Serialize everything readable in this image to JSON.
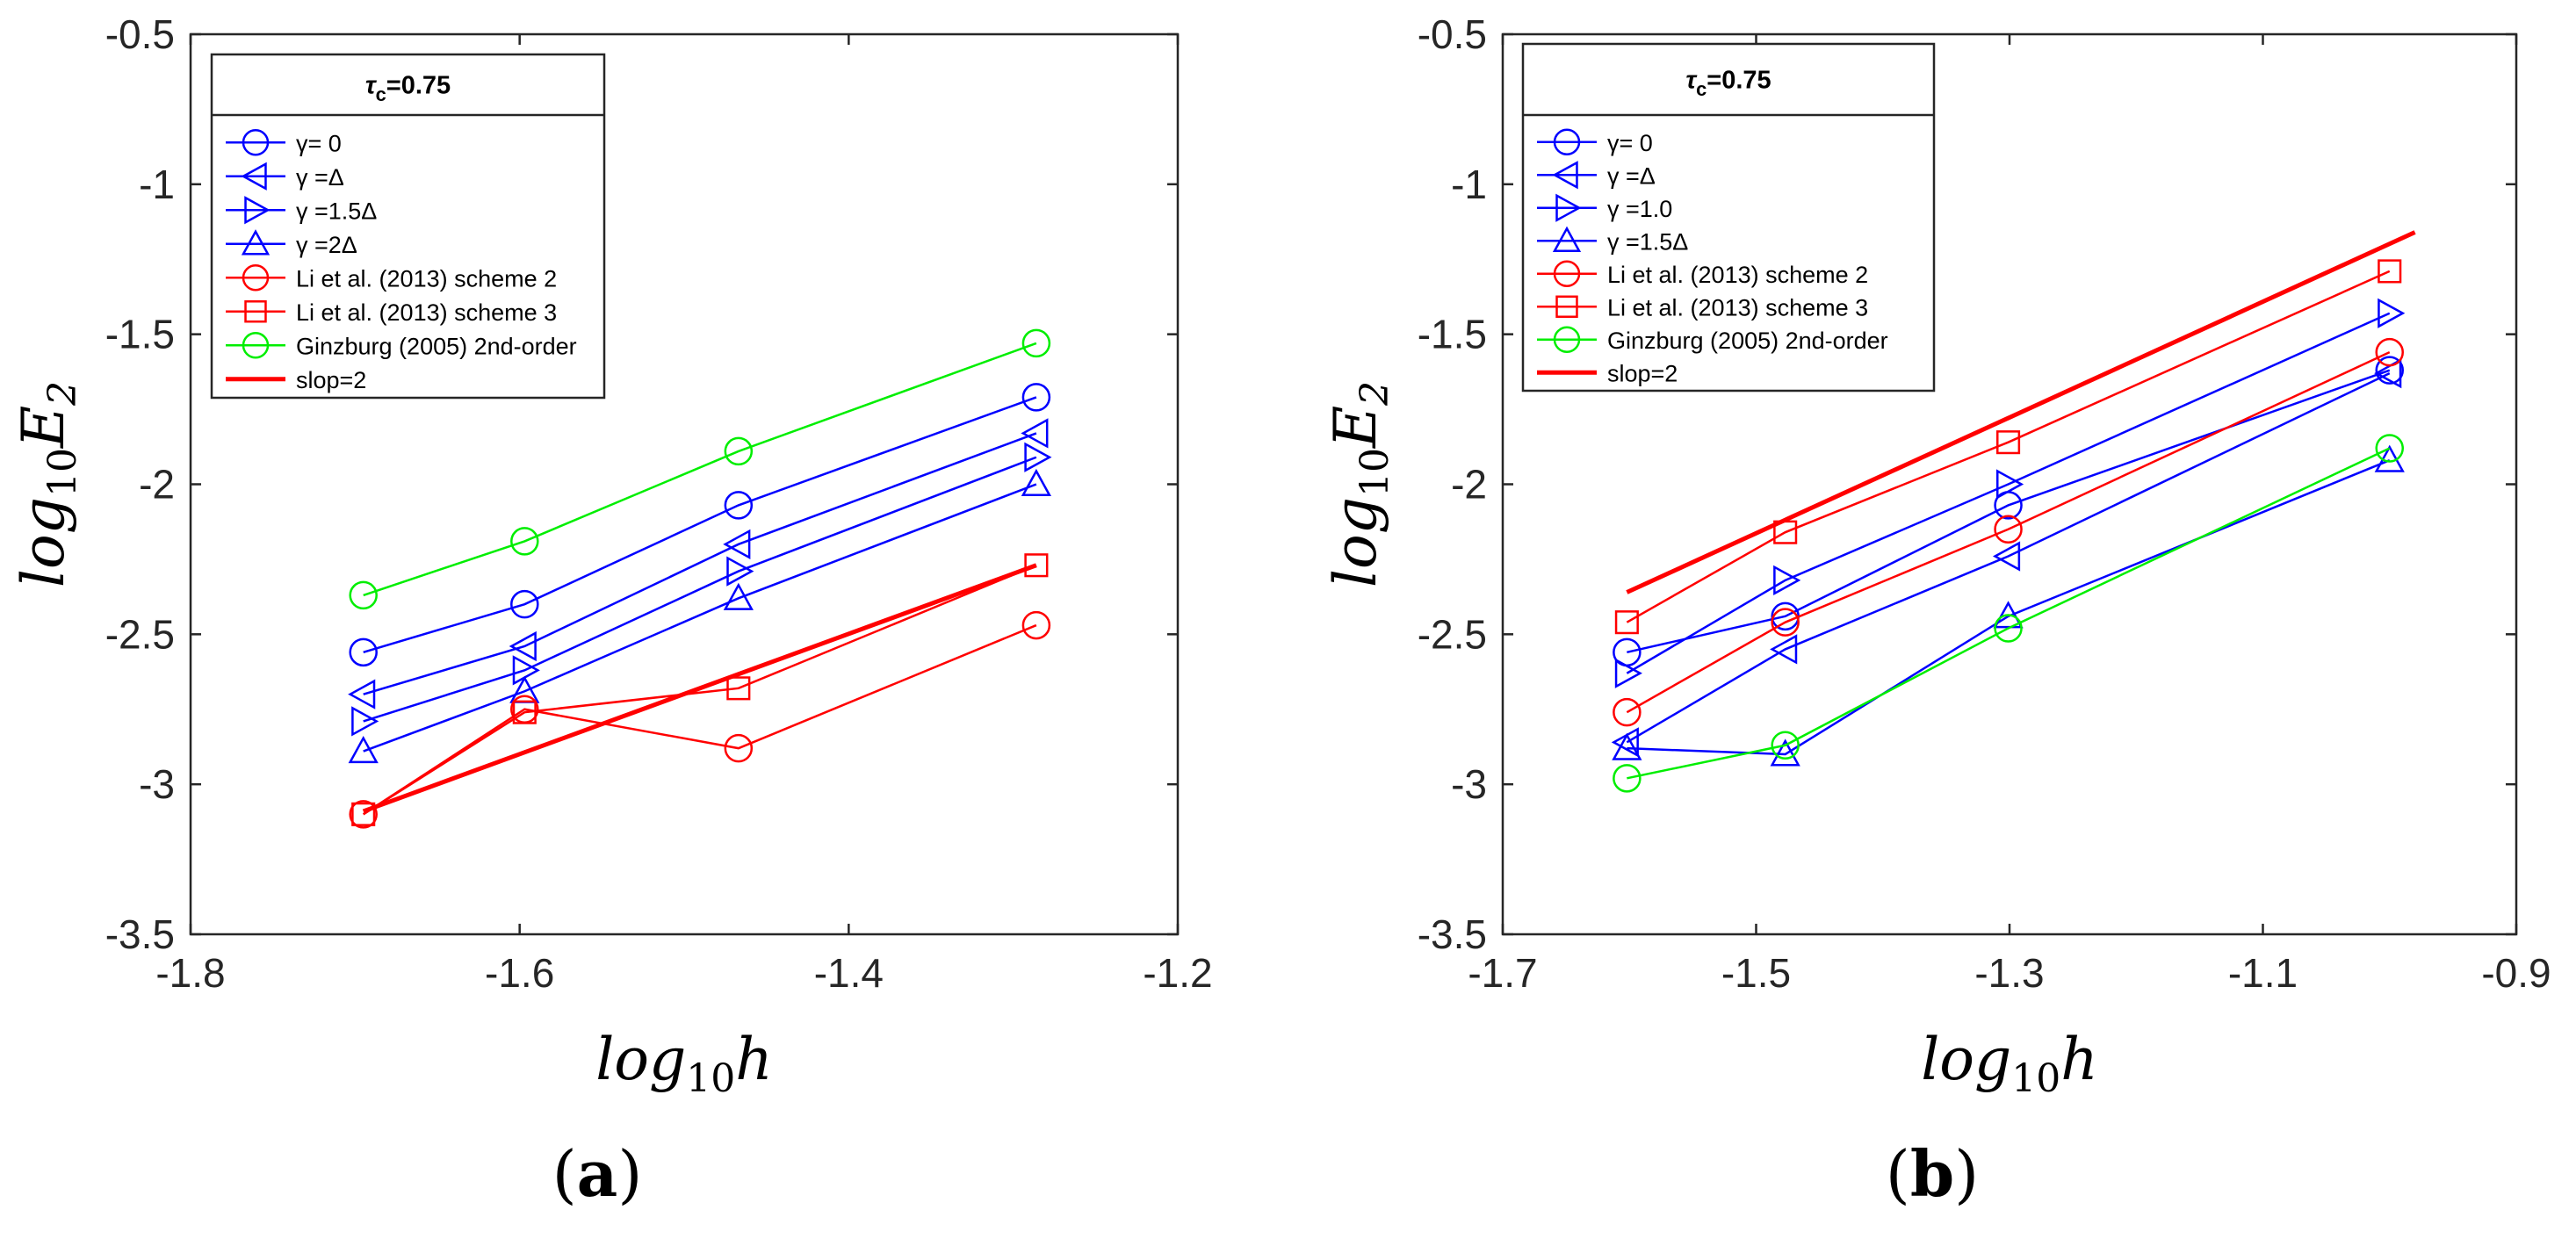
{
  "chart_data": [
    {
      "type": "line",
      "panel_label": "(a)",
      "xlabel": "log10h",
      "ylabel": "log10E2",
      "xlim": [
        -1.8,
        -1.2
      ],
      "ylim": [
        -3.5,
        -0.5
      ],
      "xticks": [
        -1.8,
        -1.6,
        -1.4,
        -1.2
      ],
      "yticks": [
        -0.5,
        -1,
        -1.5,
        -2,
        -2.5,
        -3,
        -3.5
      ],
      "xtick_labels": [
        "-1.8",
        "-1.6",
        "-1.4",
        "-1.2"
      ],
      "ytick_labels": [
        "-0.5",
        "-1",
        "-1.5",
        "-2",
        "-2.5",
        "-3",
        "-3.5"
      ],
      "grid": false,
      "legend": {
        "placement": "top-left",
        "title": "τc=0.75",
        "entries": [
          "γ= 0",
          "γ =Δ",
          "γ =1.5Δ",
          "γ =2Δ",
          "Li et al. (2013) scheme 2",
          "Li et al. (2013) scheme 3",
          "Ginzburg (2005) 2nd-order",
          "slop=2"
        ]
      },
      "series": [
        {
          "name": "γ= 0",
          "color": "#0000ff",
          "marker": "circle",
          "x": [
            -1.695,
            -1.597,
            -1.467,
            -1.286
          ],
          "y": [
            -2.56,
            -2.4,
            -2.07,
            -1.71
          ]
        },
        {
          "name": "γ =Δ",
          "color": "#0000ff",
          "marker": "triangle-left",
          "x": [
            -1.695,
            -1.597,
            -1.467,
            -1.286
          ],
          "y": [
            -2.7,
            -2.54,
            -2.2,
            -1.83
          ]
        },
        {
          "name": "γ =1.5Δ",
          "color": "#0000ff",
          "marker": "triangle-right",
          "x": [
            -1.695,
            -1.597,
            -1.467,
            -1.286
          ],
          "y": [
            -2.79,
            -2.62,
            -2.29,
            -1.91
          ]
        },
        {
          "name": "γ =2Δ",
          "color": "#0000ff",
          "marker": "triangle-up",
          "x": [
            -1.695,
            -1.597,
            -1.467,
            -1.286
          ],
          "y": [
            -2.89,
            -2.69,
            -2.38,
            -2.0
          ]
        },
        {
          "name": "Li et al. (2013) scheme 2",
          "color": "#ff0000",
          "marker": "circle",
          "x": [
            -1.695,
            -1.597,
            -1.467,
            -1.286
          ],
          "y": [
            -3.1,
            -2.75,
            -2.88,
            -2.47
          ]
        },
        {
          "name": "Li et al. (2013) scheme 3",
          "color": "#ff0000",
          "marker": "square",
          "x": [
            -1.695,
            -1.597,
            -1.467,
            -1.286
          ],
          "y": [
            -3.1,
            -2.76,
            -2.68,
            -2.27
          ]
        },
        {
          "name": "Ginzburg (2005) 2nd-order",
          "color": "#00ee00",
          "marker": "circle",
          "x": [
            -1.695,
            -1.597,
            -1.467,
            -1.286
          ],
          "y": [
            -2.37,
            -2.19,
            -1.89,
            -1.53
          ]
        },
        {
          "name": "slop=2",
          "color": "#ff0000",
          "marker": "none",
          "thick": true,
          "x": [
            -1.695,
            -1.286
          ],
          "y": [
            -3.09,
            -2.27
          ]
        }
      ]
    },
    {
      "type": "line",
      "panel_label": "(b)",
      "xlabel": "log10h",
      "ylabel": "log10E2",
      "xlim": [
        -1.7,
        -0.9
      ],
      "ylim": [
        -3.5,
        -0.5
      ],
      "xticks": [
        -1.7,
        -1.5,
        -1.3,
        -1.1,
        -0.9
      ],
      "yticks": [
        -0.5,
        -1,
        -1.5,
        -2,
        -2.5,
        -3,
        -3.5
      ],
      "xtick_labels": [
        "-1.7",
        "-1.5",
        "-1.3",
        "-1.1",
        "-0.9"
      ],
      "ytick_labels": [
        "-0.5",
        "-1",
        "-1.5",
        "-2",
        "-2.5",
        "-3",
        "-3.5"
      ],
      "grid": false,
      "legend": {
        "placement": "top-left",
        "title": "τc=0.75",
        "entries": [
          "γ= 0",
          "γ =Δ",
          "γ =1.0",
          "γ =1.5Δ",
          "Li et al. (2013) scheme 2",
          "Li et al. (2013) scheme 3",
          "Ginzburg (2005) 2nd-order",
          "slop=2"
        ]
      },
      "series": [
        {
          "name": "γ= 0",
          "color": "#0000ff",
          "marker": "circle",
          "x": [
            -1.602,
            -1.477,
            -1.301,
            -1.0
          ],
          "y": [
            -2.56,
            -2.44,
            -2.07,
            -1.62
          ]
        },
        {
          "name": "γ =Δ",
          "color": "#0000ff",
          "marker": "triangle-left",
          "x": [
            -1.602,
            -1.477,
            -1.301,
            -1.0
          ],
          "y": [
            -2.86,
            -2.55,
            -2.24,
            -1.63
          ]
        },
        {
          "name": "γ =1.0",
          "color": "#0000ff",
          "marker": "triangle-right",
          "x": [
            -1.602,
            -1.477,
            -1.301,
            -1.0
          ],
          "y": [
            -2.63,
            -2.32,
            -2.0,
            -1.43
          ]
        },
        {
          "name": "γ =1.5Δ",
          "color": "#0000ff",
          "marker": "triangle-up",
          "x": [
            -1.602,
            -1.477,
            -1.301,
            -1.0
          ],
          "y": [
            -2.88,
            -2.9,
            -2.44,
            -1.92
          ]
        },
        {
          "name": "Li et al. (2013) scheme 2",
          "color": "#ff0000",
          "marker": "circle",
          "x": [
            -1.602,
            -1.477,
            -1.301,
            -1.0
          ],
          "y": [
            -2.76,
            -2.46,
            -2.15,
            -1.56
          ]
        },
        {
          "name": "Li et al. (2013) scheme 3",
          "color": "#ff0000",
          "marker": "square",
          "x": [
            -1.602,
            -1.477,
            -1.301,
            -1.0
          ],
          "y": [
            -2.46,
            -2.16,
            -1.86,
            -1.29
          ]
        },
        {
          "name": "Ginzburg (2005) 2nd-order",
          "color": "#00ee00",
          "marker": "circle",
          "x": [
            -1.602,
            -1.477,
            -1.301,
            -1.0
          ],
          "y": [
            -2.98,
            -2.87,
            -2.48,
            -1.88
          ]
        },
        {
          "name": "slop=2",
          "color": "#ff0000",
          "marker": "none",
          "thick": true,
          "x": [
            -1.602,
            -0.98
          ],
          "y": [
            -2.36,
            -1.16
          ]
        }
      ]
    }
  ]
}
